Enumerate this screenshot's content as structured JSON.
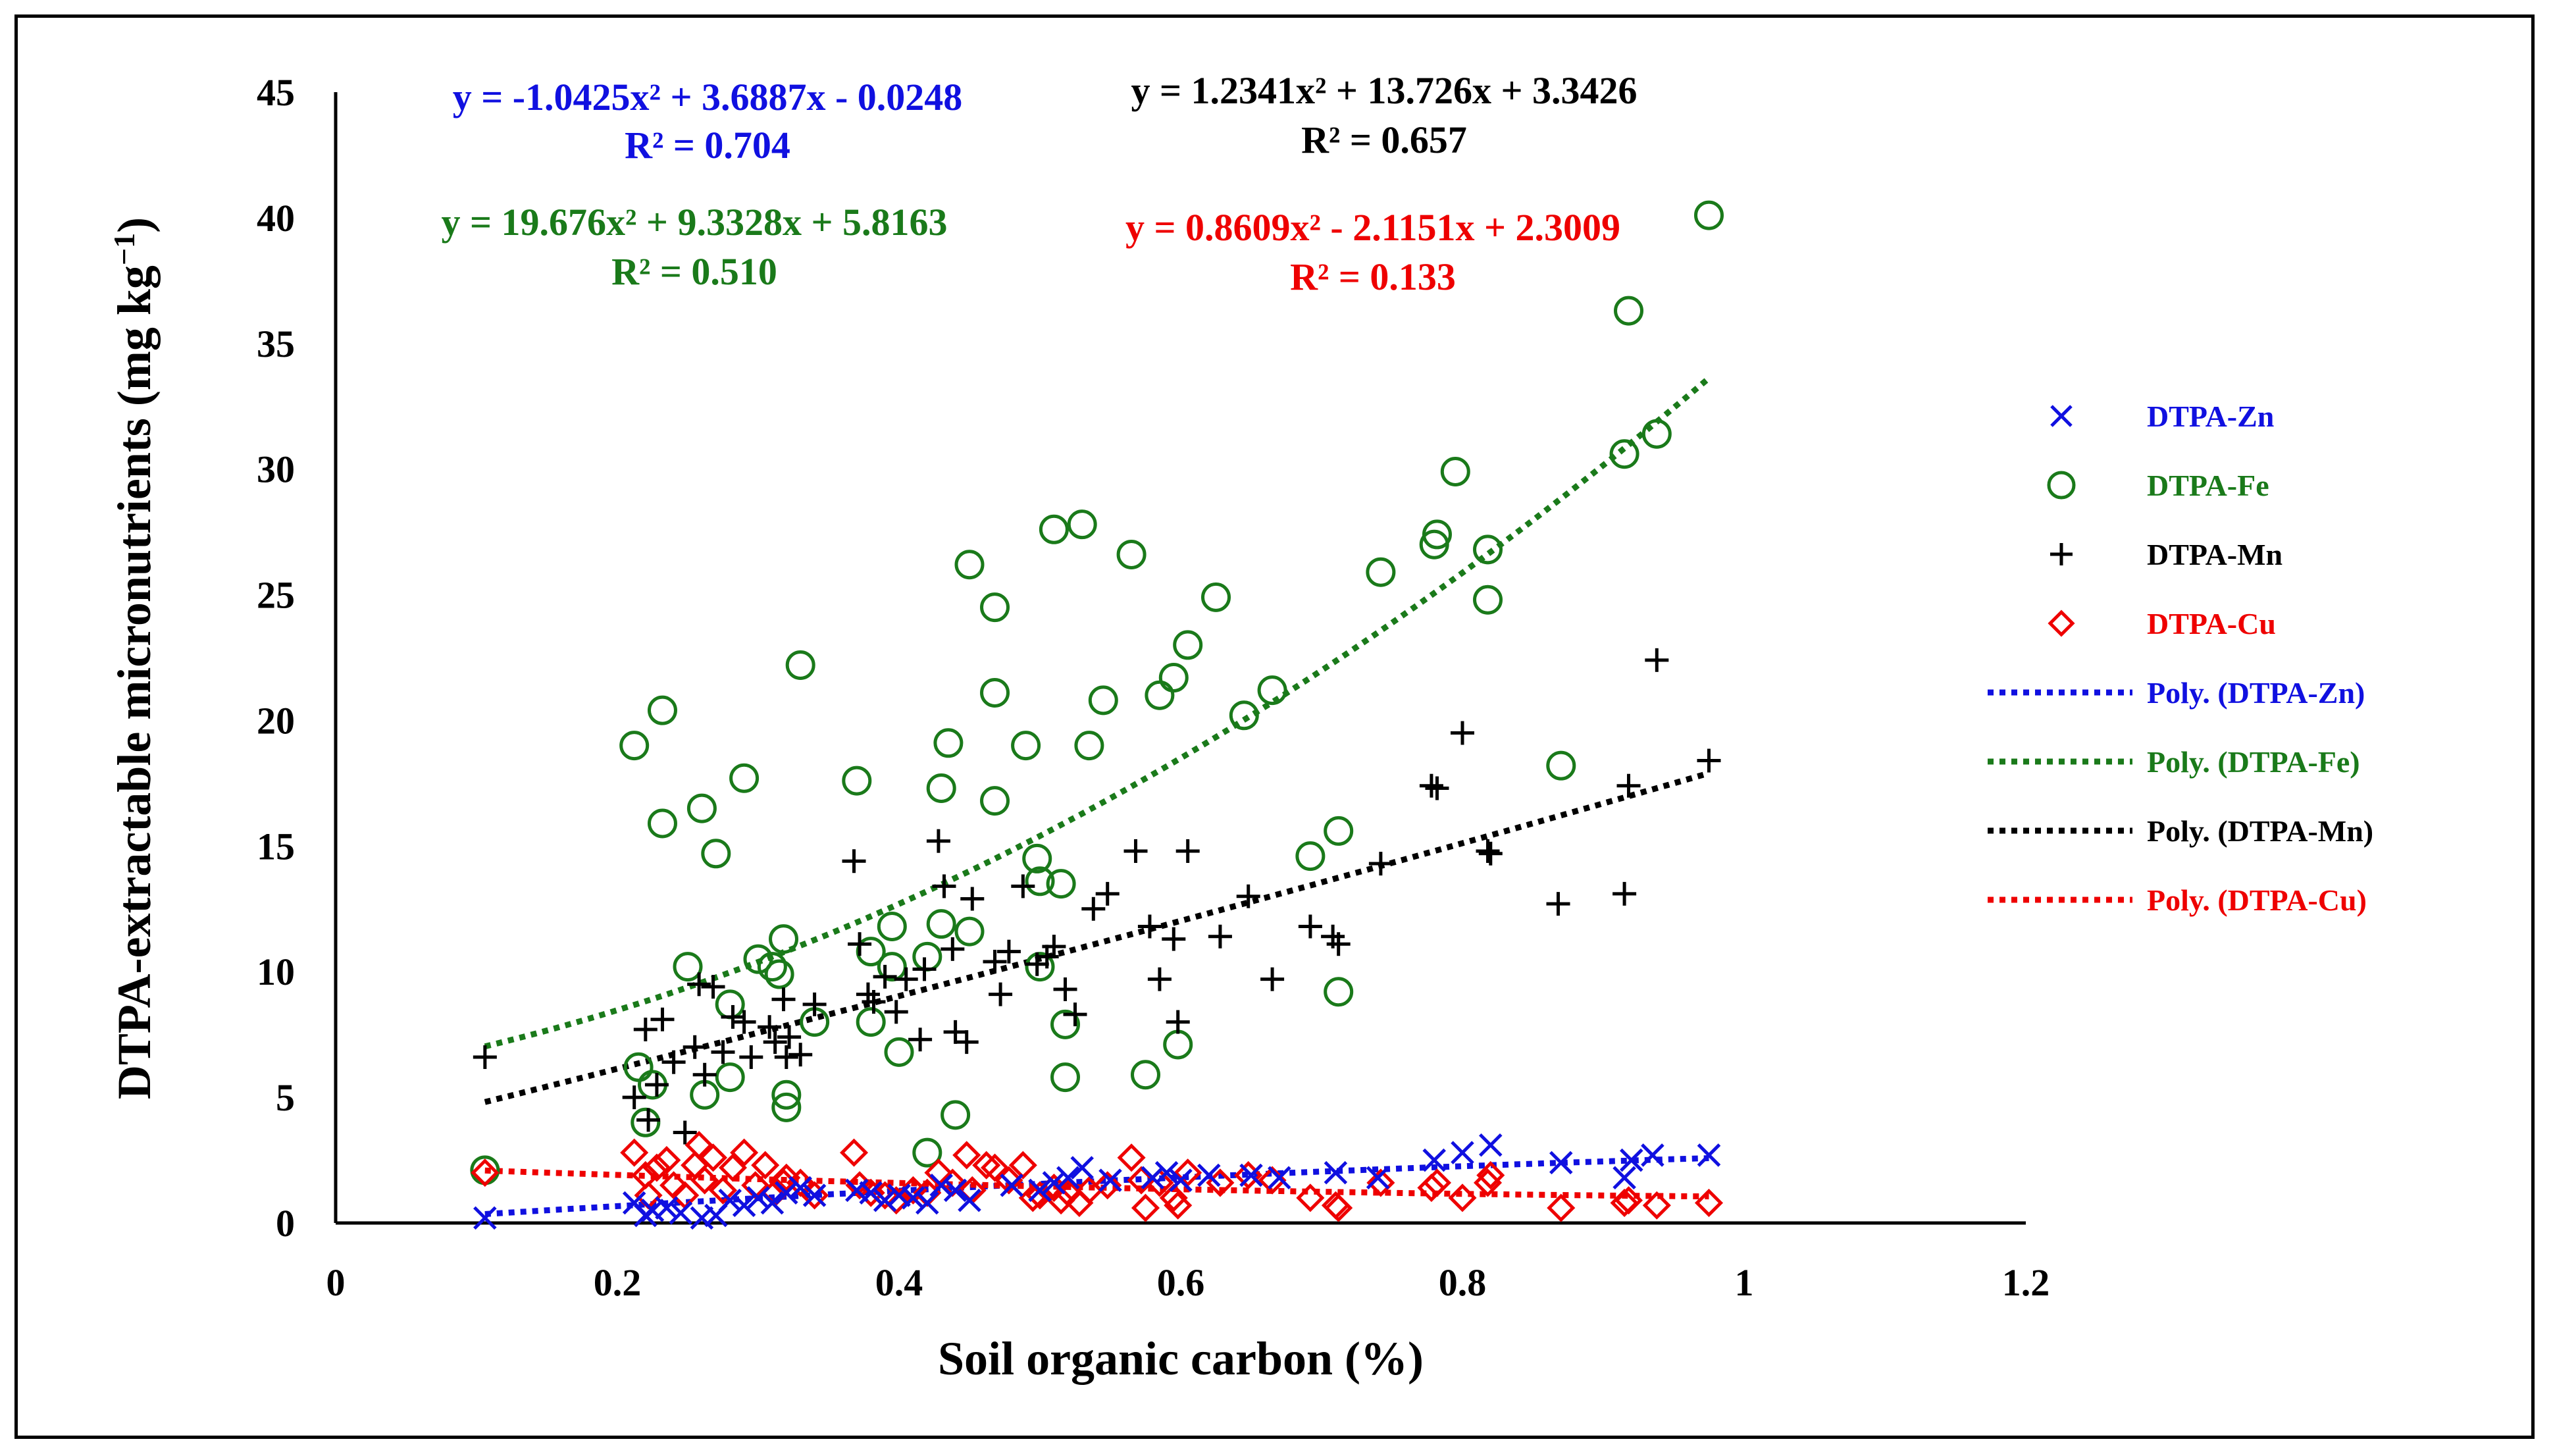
{
  "chart_data": {
    "type": "scatter",
    "xlabel": "Soil organic carbon (%)",
    "ylabel": "DTPA-extractable micronutrients (mg kg",
    "ylabel_unit_sup": "−1",
    "ylabel_close": ")",
    "xlim": [
      0,
      1.2
    ],
    "ylim": [
      0,
      45
    ],
    "x_ticks": [
      "0",
      "0.2",
      "0.4",
      "0.6",
      "0.8",
      "1",
      "1.2"
    ],
    "y_ticks": [
      "0",
      "5",
      "10",
      "15",
      "20",
      "25",
      "30",
      "35",
      "40",
      "45"
    ],
    "colors": {
      "zn": "#1010e0",
      "fe": "#1a7a1a",
      "mn": "#000000",
      "cu": "#ee0000"
    },
    "equations": {
      "zn": {
        "eq": "y = -1.0425x² + 3.6887x - 0.0248",
        "r2": "R² = 0.704"
      },
      "fe": {
        "eq": "y = 19.676x² + 9.3328x + 5.8163",
        "r2": "R² = 0.510"
      },
      "mn": {
        "eq": "y = 1.2341x² + 13.726x + 3.3426",
        "r2": "R² = 0.657"
      },
      "cu": {
        "eq": "y = 0.8609x² - 2.1151x + 2.3009",
        "r2": "R² = 0.133"
      }
    },
    "legend": {
      "position": "right",
      "items": [
        {
          "label": "DTPA-Zn",
          "kind": "marker",
          "series": "zn"
        },
        {
          "label": "DTPA-Fe",
          "kind": "marker",
          "series": "fe"
        },
        {
          "label": "DTPA-Mn",
          "kind": "marker",
          "series": "mn"
        },
        {
          "label": "DTPA-Cu",
          "kind": "marker",
          "series": "cu"
        },
        {
          "label": "Poly. (DTPA-Zn)",
          "kind": "line",
          "series": "zn"
        },
        {
          "label": "Poly. (DTPA-Fe)",
          "kind": "line",
          "series": "fe"
        },
        {
          "label": "Poly. (DTPA-Mn)",
          "kind": "line",
          "series": "mn"
        },
        {
          "label": "Poly. (DTPA-Cu)",
          "kind": "line",
          "series": "cu"
        }
      ]
    },
    "series": [
      {
        "name": "DTPA-Zn",
        "key": "zn",
        "marker": "x",
        "trend": [
          -1.0425,
          3.6887,
          -0.0248
        ],
        "points": [
          [
            0.106,
            0.2
          ],
          [
            0.212,
            0.8
          ],
          [
            0.22,
            0.3
          ],
          [
            0.225,
            0.5
          ],
          [
            0.235,
            0.6
          ],
          [
            0.245,
            0.4
          ],
          [
            0.26,
            0.2
          ],
          [
            0.27,
            0.3
          ],
          [
            0.28,
            0.9
          ],
          [
            0.29,
            0.7
          ],
          [
            0.3,
            1.0
          ],
          [
            0.31,
            0.8
          ],
          [
            0.32,
            1.2
          ],
          [
            0.33,
            1.4
          ],
          [
            0.34,
            1.1
          ],
          [
            0.37,
            1.3
          ],
          [
            0.38,
            1.2
          ],
          [
            0.39,
            0.9
          ],
          [
            0.4,
            1.1
          ],
          [
            0.41,
            1.0
          ],
          [
            0.42,
            0.8
          ],
          [
            0.43,
            1.5
          ],
          [
            0.44,
            1.3
          ],
          [
            0.45,
            0.9
          ],
          [
            0.48,
            1.5
          ],
          [
            0.5,
            1.3
          ],
          [
            0.51,
            1.6
          ],
          [
            0.52,
            1.8
          ],
          [
            0.53,
            2.2
          ],
          [
            0.55,
            1.7
          ],
          [
            0.58,
            1.8
          ],
          [
            0.59,
            2.0
          ],
          [
            0.6,
            1.7
          ],
          [
            0.62,
            1.9
          ],
          [
            0.65,
            1.9
          ],
          [
            0.67,
            1.8
          ],
          [
            0.71,
            2.0
          ],
          [
            0.74,
            1.8
          ],
          [
            0.78,
            2.5
          ],
          [
            0.8,
            2.8
          ],
          [
            0.82,
            3.1
          ],
          [
            0.87,
            2.4
          ],
          [
            0.915,
            1.8
          ],
          [
            0.92,
            2.5
          ],
          [
            0.935,
            2.7
          ],
          [
            0.975,
            2.7
          ]
        ]
      },
      {
        "name": "DTPA-Fe",
        "key": "fe",
        "marker": "o",
        "trend": [
          19.676,
          9.3328,
          5.8163
        ],
        "points": [
          [
            0.106,
            2.1
          ],
          [
            0.212,
            19.0
          ],
          [
            0.215,
            6.2
          ],
          [
            0.22,
            4.0
          ],
          [
            0.225,
            5.5
          ],
          [
            0.232,
            20.4
          ],
          [
            0.232,
            15.9
          ],
          [
            0.25,
            10.2
          ],
          [
            0.26,
            16.5
          ],
          [
            0.262,
            5.1
          ],
          [
            0.27,
            14.7
          ],
          [
            0.28,
            8.7
          ],
          [
            0.28,
            5.8
          ],
          [
            0.29,
            17.7
          ],
          [
            0.3,
            10.5
          ],
          [
            0.31,
            10.2
          ],
          [
            0.315,
            9.9
          ],
          [
            0.318,
            11.3
          ],
          [
            0.32,
            5.1
          ],
          [
            0.32,
            4.6
          ],
          [
            0.33,
            22.2
          ],
          [
            0.34,
            8.0
          ],
          [
            0.37,
            17.6
          ],
          [
            0.38,
            10.8
          ],
          [
            0.38,
            8.0
          ],
          [
            0.395,
            11.8
          ],
          [
            0.395,
            10.2
          ],
          [
            0.4,
            6.8
          ],
          [
            0.42,
            10.6
          ],
          [
            0.42,
            2.8
          ],
          [
            0.43,
            17.3
          ],
          [
            0.43,
            11.9
          ],
          [
            0.435,
            19.1
          ],
          [
            0.44,
            4.3
          ],
          [
            0.45,
            26.2
          ],
          [
            0.45,
            11.6
          ],
          [
            0.468,
            24.5
          ],
          [
            0.468,
            21.1
          ],
          [
            0.468,
            16.8
          ],
          [
            0.49,
            19.0
          ],
          [
            0.498,
            14.5
          ],
          [
            0.5,
            13.6
          ],
          [
            0.5,
            10.2
          ],
          [
            0.51,
            27.6
          ],
          [
            0.515,
            13.5
          ],
          [
            0.518,
            7.9
          ],
          [
            0.518,
            5.8
          ],
          [
            0.53,
            27.8
          ],
          [
            0.535,
            19.0
          ],
          [
            0.545,
            20.8
          ],
          [
            0.565,
            26.6
          ],
          [
            0.575,
            5.9
          ],
          [
            0.585,
            21.0
          ],
          [
            0.595,
            21.7
          ],
          [
            0.598,
            7.1
          ],
          [
            0.605,
            23.0
          ],
          [
            0.625,
            24.9
          ],
          [
            0.645,
            20.2
          ],
          [
            0.665,
            21.2
          ],
          [
            0.692,
            14.6
          ],
          [
            0.712,
            15.6
          ],
          [
            0.712,
            9.2
          ],
          [
            0.742,
            25.9
          ],
          [
            0.78,
            27.0
          ],
          [
            0.782,
            27.4
          ],
          [
            0.795,
            29.9
          ],
          [
            0.818,
            26.8
          ],
          [
            0.818,
            24.8
          ],
          [
            0.87,
            18.2
          ],
          [
            0.915,
            30.6
          ],
          [
            0.918,
            36.3
          ],
          [
            0.938,
            31.4
          ],
          [
            0.975,
            40.1
          ]
        ]
      },
      {
        "name": "DTPA-Mn",
        "key": "mn",
        "marker": "+",
        "trend": [
          1.2341,
          13.726,
          3.3426
        ],
        "points": [
          [
            0.106,
            6.6
          ],
          [
            0.212,
            5.0
          ],
          [
            0.22,
            7.7
          ],
          [
            0.222,
            4.1
          ],
          [
            0.228,
            5.5
          ],
          [
            0.232,
            8.1
          ],
          [
            0.24,
            6.4
          ],
          [
            0.248,
            3.6
          ],
          [
            0.255,
            7.0
          ],
          [
            0.258,
            9.5
          ],
          [
            0.262,
            5.9
          ],
          [
            0.268,
            9.4
          ],
          [
            0.275,
            6.8
          ],
          [
            0.282,
            8.2
          ],
          [
            0.29,
            8.0
          ],
          [
            0.295,
            6.6
          ],
          [
            0.308,
            7.8
          ],
          [
            0.312,
            7.2
          ],
          [
            0.318,
            8.9
          ],
          [
            0.32,
            6.6
          ],
          [
            0.322,
            7.4
          ],
          [
            0.33,
            6.7
          ],
          [
            0.34,
            8.7
          ],
          [
            0.368,
            14.4
          ],
          [
            0.372,
            11.1
          ],
          [
            0.378,
            9.1
          ],
          [
            0.382,
            8.8
          ],
          [
            0.39,
            9.8
          ],
          [
            0.398,
            8.4
          ],
          [
            0.405,
            9.7
          ],
          [
            0.415,
            7.3
          ],
          [
            0.418,
            10.1
          ],
          [
            0.428,
            15.2
          ],
          [
            0.432,
            13.4
          ],
          [
            0.438,
            10.9
          ],
          [
            0.44,
            7.6
          ],
          [
            0.448,
            7.2
          ],
          [
            0.452,
            12.9
          ],
          [
            0.468,
            10.4
          ],
          [
            0.472,
            9.1
          ],
          [
            0.478,
            10.8
          ],
          [
            0.488,
            13.4
          ],
          [
            0.498,
            10.3
          ],
          [
            0.505,
            10.6
          ],
          [
            0.51,
            11.0
          ],
          [
            0.518,
            9.3
          ],
          [
            0.525,
            8.3
          ],
          [
            0.538,
            12.5
          ],
          [
            0.548,
            13.1
          ],
          [
            0.568,
            14.8
          ],
          [
            0.578,
            11.8
          ],
          [
            0.585,
            9.7
          ],
          [
            0.595,
            11.3
          ],
          [
            0.598,
            8.0
          ],
          [
            0.605,
            14.8
          ],
          [
            0.628,
            11.4
          ],
          [
            0.648,
            13.0
          ],
          [
            0.665,
            9.7
          ],
          [
            0.692,
            11.8
          ],
          [
            0.708,
            11.4
          ],
          [
            0.712,
            11.1
          ],
          [
            0.742,
            14.3
          ],
          [
            0.778,
            17.4
          ],
          [
            0.782,
            17.3
          ],
          [
            0.8,
            19.5
          ],
          [
            0.818,
            14.8
          ],
          [
            0.82,
            14.7
          ],
          [
            0.868,
            12.7
          ],
          [
            0.915,
            13.1
          ],
          [
            0.918,
            17.4
          ],
          [
            0.938,
            22.4
          ],
          [
            0.975,
            18.4
          ]
        ]
      },
      {
        "name": "DTPA-Cu",
        "key": "cu",
        "marker": "diamond",
        "trend": [
          0.8609,
          -2.1151,
          2.3009
        ],
        "points": [
          [
            0.106,
            2.0
          ],
          [
            0.212,
            2.8
          ],
          [
            0.22,
            1.9
          ],
          [
            0.222,
            1.1
          ],
          [
            0.228,
            2.2
          ],
          [
            0.235,
            2.5
          ],
          [
            0.24,
            1.5
          ],
          [
            0.248,
            1.1
          ],
          [
            0.255,
            2.3
          ],
          [
            0.258,
            3.1
          ],
          [
            0.262,
            1.7
          ],
          [
            0.268,
            2.6
          ],
          [
            0.275,
            1.3
          ],
          [
            0.282,
            2.2
          ],
          [
            0.29,
            2.8
          ],
          [
            0.298,
            1.5
          ],
          [
            0.305,
            2.3
          ],
          [
            0.312,
            1.2
          ],
          [
            0.318,
            1.6
          ],
          [
            0.32,
            1.8
          ],
          [
            0.33,
            1.6
          ],
          [
            0.34,
            1.1
          ],
          [
            0.368,
            2.8
          ],
          [
            0.372,
            1.5
          ],
          [
            0.38,
            1.2
          ],
          [
            0.39,
            1.1
          ],
          [
            0.398,
            0.9
          ],
          [
            0.41,
            1.3
          ],
          [
            0.42,
            1.2
          ],
          [
            0.428,
            2.0
          ],
          [
            0.438,
            1.6
          ],
          [
            0.448,
            2.7
          ],
          [
            0.452,
            1.3
          ],
          [
            0.462,
            2.3
          ],
          [
            0.468,
            2.2
          ],
          [
            0.478,
            1.7
          ],
          [
            0.488,
            2.3
          ],
          [
            0.495,
            1.0
          ],
          [
            0.5,
            1.1
          ],
          [
            0.51,
            1.4
          ],
          [
            0.515,
            0.9
          ],
          [
            0.52,
            1.2
          ],
          [
            0.528,
            0.8
          ],
          [
            0.535,
            1.3
          ],
          [
            0.548,
            1.5
          ],
          [
            0.565,
            2.6
          ],
          [
            0.572,
            1.7
          ],
          [
            0.575,
            0.6
          ],
          [
            0.585,
            1.6
          ],
          [
            0.595,
            1.0
          ],
          [
            0.598,
            0.7
          ],
          [
            0.605,
            2.0
          ],
          [
            0.628,
            1.6
          ],
          [
            0.648,
            1.9
          ],
          [
            0.665,
            1.7
          ],
          [
            0.692,
            1.0
          ],
          [
            0.71,
            0.7
          ],
          [
            0.712,
            0.6
          ],
          [
            0.742,
            1.6
          ],
          [
            0.778,
            1.4
          ],
          [
            0.782,
            1.6
          ],
          [
            0.8,
            1.0
          ],
          [
            0.818,
            1.6
          ],
          [
            0.82,
            1.9
          ],
          [
            0.87,
            0.6
          ],
          [
            0.915,
            0.8
          ],
          [
            0.918,
            0.9
          ],
          [
            0.938,
            0.7
          ],
          [
            0.975,
            0.8
          ]
        ]
      }
    ]
  }
}
